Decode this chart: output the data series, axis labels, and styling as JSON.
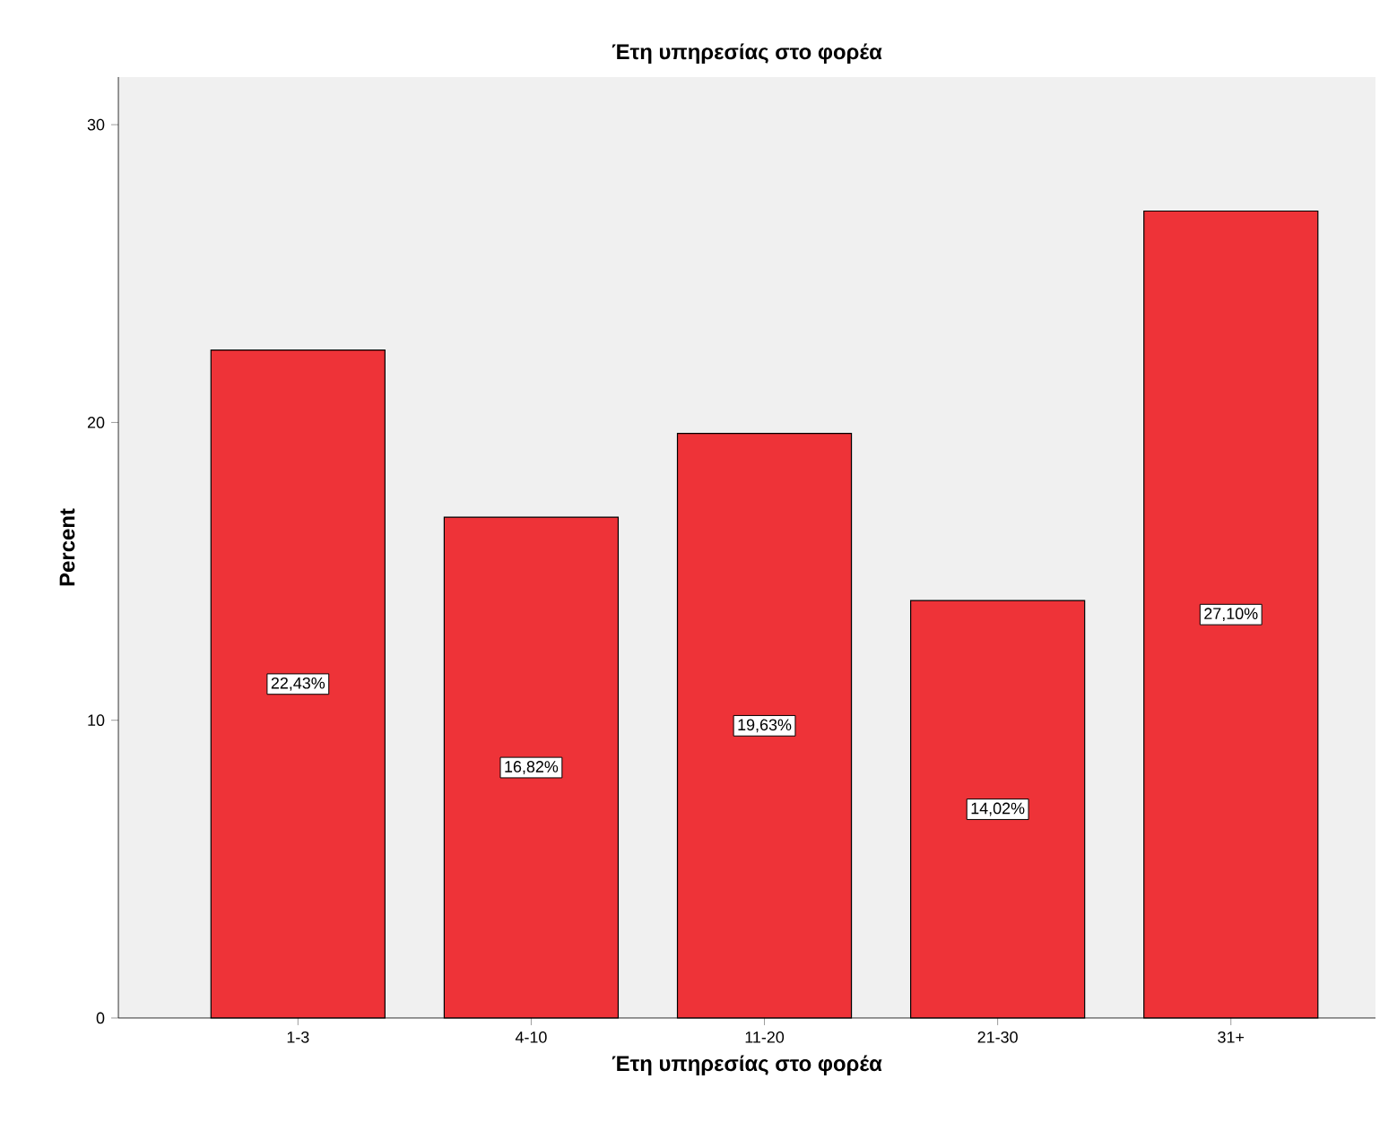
{
  "chart_data": {
    "type": "bar",
    "title": "Έτη υπηρεσίας στο φορέα",
    "xlabel": "Έτη υπηρεσίας στο φορέα",
    "ylabel": "Percent",
    "categories": [
      "1-3",
      "4-10",
      "11-20",
      "21-30",
      "31+"
    ],
    "values": [
      22.43,
      16.82,
      19.63,
      14.02,
      27.1
    ],
    "value_labels": [
      "22,43%",
      "16,82%",
      "19,63%",
      "14,02%",
      "27,10%"
    ],
    "color": "#ee3338",
    "ylim": [
      0,
      31.6
    ],
    "yticks": [
      0,
      10,
      20,
      30
    ],
    "grid": false
  }
}
